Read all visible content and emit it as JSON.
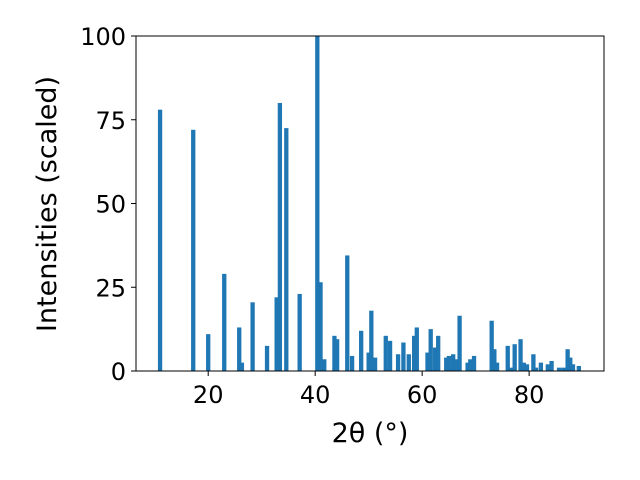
{
  "chart_data": {
    "type": "bar",
    "title": "",
    "xlabel": "2θ (°)",
    "ylabel": "Intensities (scaled)",
    "xlim": [
      6.5,
      94.0
    ],
    "ylim": [
      0,
      100
    ],
    "xticks": [
      20,
      40,
      60,
      80
    ],
    "yticks": [
      0,
      25,
      50,
      75,
      100
    ],
    "bar_color": "#1f77b4",
    "grid": false,
    "legend": "none",
    "x": [
      11.0,
      17.2,
      20.0,
      23.0,
      25.8,
      26.3,
      28.3,
      31.0,
      32.8,
      33.4,
      34.6,
      37.1,
      40.4,
      41.0,
      41.7,
      43.6,
      44.1,
      46.0,
      46.9,
      48.6,
      50.0,
      50.5,
      51.2,
      53.2,
      54.0,
      55.5,
      56.5,
      57.5,
      58.5,
      59.0,
      61.0,
      61.6,
      62.4,
      63.0,
      64.5,
      65.0,
      65.8,
      66.3,
      67.0,
      68.5,
      69.0,
      69.7,
      73.0,
      73.5,
      74.0,
      76.0,
      76.6,
      77.3,
      78.4,
      79.0,
      79.6,
      80.8,
      81.3,
      82.2,
      83.5,
      84.2,
      85.6,
      86.4,
      87.2,
      87.7,
      88.2,
      89.3
    ],
    "values": [
      78,
      72,
      11,
      29,
      13,
      2.5,
      20.5,
      7.5,
      22,
      80,
      72.5,
      23,
      100,
      26.5,
      3.5,
      10.5,
      9.5,
      34.5,
      4.5,
      12,
      5.5,
      18,
      4,
      10.5,
      9,
      5,
      8.5,
      5,
      10.5,
      13,
      5.5,
      12.5,
      7,
      10.5,
      4,
      4.5,
      5,
      3.5,
      16.5,
      2.5,
      3.5,
      4.5,
      15,
      6.5,
      2.5,
      7.5,
      1,
      8,
      9.5,
      2.5,
      2,
      5,
      1,
      2.5,
      2,
      3,
      1,
      1,
      6.5,
      4,
      2,
      1.5
    ]
  }
}
